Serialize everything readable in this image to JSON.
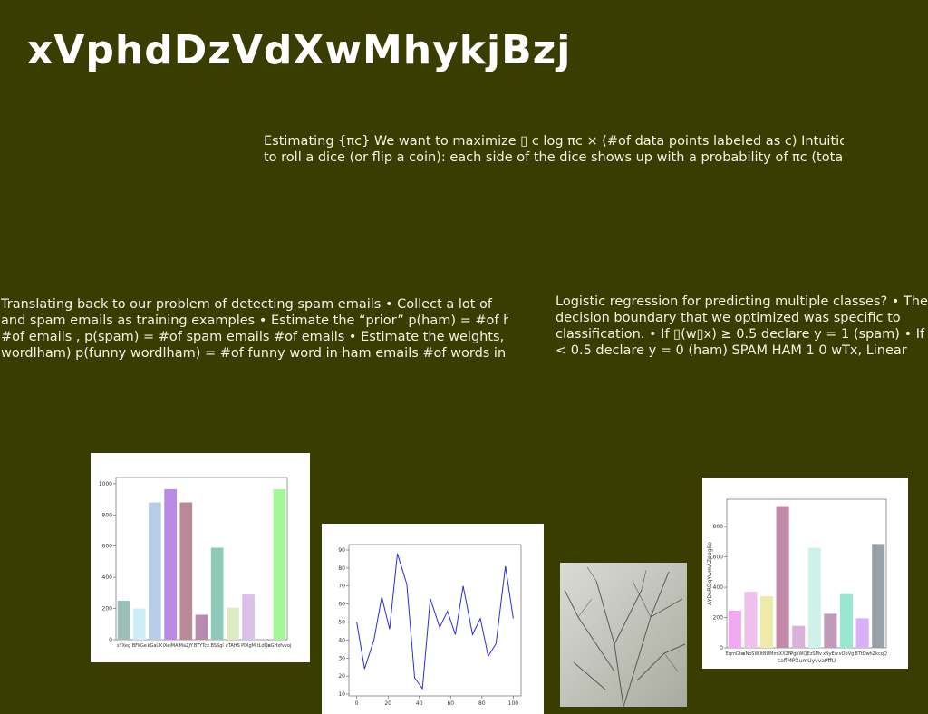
{
  "title": "xVphdDzVdXwMhykjBzj",
  "paragraphs": [
    {
      "lines": [
        "Estimating {πc} We want to maximize ▯ c log πc × (#of data points labeled as c) Intuition •",
        "to roll a dice (or flip a coin): each side of the dice shows up with a probability of πc (total C"
      ]
    },
    {
      "lines": [
        "Translating back to our problem of detecting spam emails • Collect a lot of",
        "and spam emails as training examples • Estimate the “prior” p(ham) = #of ham",
        "#of emails , p(spam) = #of spam emails #of emails • Estimate the weights, e.g.,",
        "wordlham) p(funny wordlham) = #of funny word in ham emails #of words in"
      ]
    },
    {
      "lines": [
        "Logistic regression for predicting multiple classes? • The",
        "decision boundary that we optimized was specific to",
        "classification. • If ▯(w▯x) ≥ 0.5 declare y = 1 (spam) • If",
        "< 0.5 declare y = 0 (ham) SPAM HAM 1 0 wTx, Linear"
      ]
    }
  ],
  "charts": [
    {
      "type": "bar",
      "categories": [
        "sYXeg",
        "BFkGe",
        "kGaUK",
        "iXeiMA",
        "MaZJY",
        "BYYTcx",
        "BSSgl",
        "cTAHS",
        "PDIgM",
        "tLdQu",
        "aGHxfvvoj"
      ],
      "values": [
        250,
        200,
        880,
        965,
        880,
        160,
        590,
        205,
        290,
        null,
        965
      ],
      "colors": [
        "#9cbfb8",
        "#cdeef7",
        "#b8cde6",
        "#b98ae6",
        "#b98a96",
        "#b98ab0",
        "#8fcab8",
        "#dcecc0",
        "#dcc0ec",
        "#ffffff",
        "#a6f59a"
      ],
      "ylim": [
        0,
        1040
      ],
      "yticks": [
        0,
        200,
        400,
        600,
        800,
        1000
      ]
    },
    {
      "type": "line",
      "x": [
        0,
        5,
        11,
        16,
        21,
        26,
        32,
        37,
        42,
        47,
        53,
        58,
        63,
        68,
        74,
        79,
        84,
        89,
        95,
        100
      ],
      "values": [
        50,
        24,
        40,
        64,
        46,
        88,
        71,
        19,
        13,
        63,
        47,
        56,
        43,
        70,
        43,
        52,
        31,
        38,
        81,
        52
      ],
      "color": "#2b2bd6",
      "xlim": [
        -5,
        105
      ],
      "xticks": [
        0,
        20,
        40,
        60,
        80,
        100
      ],
      "ylim": [
        9,
        93
      ],
      "yticks": [
        10,
        20,
        30,
        40,
        50,
        60,
        70,
        80,
        90
      ]
    },
    {
      "type": "bar",
      "categories": [
        "EqmDte",
        "aNoSW",
        "ItBUM",
        "mIXXZN",
        "PghWQ",
        "EzSMv",
        "xNyEw",
        "vObVg",
        "BTtDw",
        "hZkcqQ"
      ],
      "values": [
        245,
        370,
        340,
        935,
        145,
        660,
        225,
        355,
        195,
        685
      ],
      "colors": [
        "#f0a8f0",
        "#f0c0ec",
        "#f0eaa8",
        "#c08aa8",
        "#dcb0dc",
        "#d0f0ea",
        "#c09ab8",
        "#98e8d0",
        "#d8b0f8",
        "#98a0a8"
      ],
      "xlabel": "caflMPXumUyvvaPffU",
      "ylabel": "AYDuRDqYwmAZppgSo",
      "ylim": [
        0,
        980
      ],
      "yticks": [
        0,
        200,
        400,
        600,
        800
      ]
    }
  ]
}
